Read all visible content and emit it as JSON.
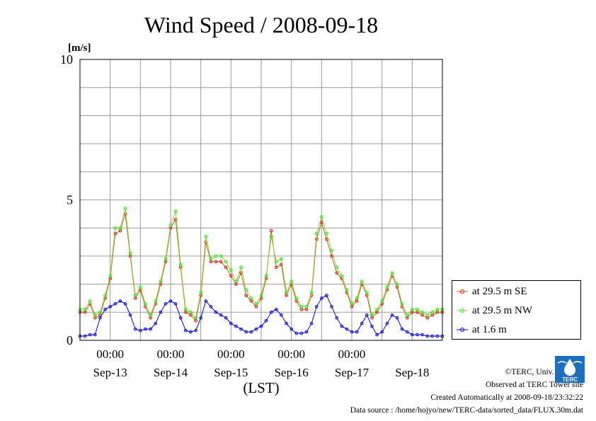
{
  "chart_data": {
    "type": "line",
    "title": "Wind Speed / 2008-09-18",
    "ylabel": "[m/s]",
    "xlabel": "(LST)",
    "ylim": [
      0,
      10
    ],
    "y_ticks": [
      "0",
      "5",
      "10"
    ],
    "x_range_hours": [
      0,
      144
    ],
    "x_axis_start": "2008-09-12 12:00 LST",
    "x_time_ticks": [
      "00:00",
      "00:00",
      "00:00",
      "00:00",
      "00:00"
    ],
    "x_date_labels": [
      "Sep-13",
      "Sep-14",
      "Sep-15",
      "Sep-16",
      "Sep-17",
      "Sep-18"
    ],
    "grid": true,
    "legend_position": "bottom-right outside plot",
    "series": [
      {
        "name": "at 29.5 m SE",
        "color": "#ff0000",
        "line_color": "#b5651d",
        "marker": "circle",
        "x_hours": [
          0,
          2,
          4,
          6,
          8,
          10,
          12,
          14,
          16,
          18,
          20,
          22,
          24,
          26,
          28,
          30,
          32,
          34,
          36,
          38,
          40,
          42,
          44,
          46,
          48,
          50,
          52,
          54,
          56,
          58,
          60,
          62,
          64,
          66,
          68,
          70,
          72,
          74,
          76,
          78,
          80,
          82,
          84,
          86,
          88,
          90,
          92,
          94,
          96,
          98,
          100,
          102,
          104,
          106,
          108,
          110,
          112,
          114,
          116,
          118,
          120,
          122,
          124,
          126,
          128,
          130,
          132,
          134,
          136,
          138,
          140,
          142,
          144
        ],
        "values": [
          1.0,
          1.0,
          1.3,
          0.8,
          0.9,
          1.5,
          2.2,
          3.8,
          3.9,
          4.5,
          3.0,
          1.5,
          1.8,
          1.2,
          0.8,
          1.3,
          2.0,
          2.8,
          4.0,
          4.3,
          2.6,
          1.0,
          0.9,
          0.7,
          1.6,
          3.5,
          2.8,
          2.8,
          2.8,
          2.6,
          2.3,
          2.0,
          2.4,
          1.6,
          1.4,
          1.2,
          1.5,
          2.2,
          3.9,
          2.6,
          2.7,
          1.6,
          2.0,
          1.4,
          1.1,
          1.1,
          1.6,
          3.6,
          4.2,
          3.6,
          3.0,
          2.4,
          2.2,
          1.7,
          1.2,
          1.4,
          2.0,
          1.6,
          0.8,
          1.0,
          1.3,
          1.8,
          2.3,
          1.9,
          1.2,
          0.8,
          1.0,
          1.0,
          0.9,
          0.8,
          0.9,
          1.0,
          1.0
        ]
      },
      {
        "name": "at 29.5 m NW",
        "color": "#00ff00",
        "line_color": "#9acd32",
        "marker": "circle",
        "x_hours": [
          0,
          2,
          4,
          6,
          8,
          10,
          12,
          14,
          16,
          18,
          20,
          22,
          24,
          26,
          28,
          30,
          32,
          34,
          36,
          38,
          40,
          42,
          44,
          46,
          48,
          50,
          52,
          54,
          56,
          58,
          60,
          62,
          64,
          66,
          68,
          70,
          72,
          74,
          76,
          78,
          80,
          82,
          84,
          86,
          88,
          90,
          92,
          94,
          96,
          98,
          100,
          102,
          104,
          106,
          108,
          110,
          112,
          114,
          116,
          118,
          120,
          122,
          124,
          126,
          128,
          130,
          132,
          134,
          136,
          138,
          140,
          142,
          144
        ],
        "values": [
          1.1,
          1.1,
          1.4,
          0.9,
          1.0,
          1.6,
          2.3,
          4.0,
          4.0,
          4.7,
          3.1,
          1.6,
          1.9,
          1.3,
          0.9,
          1.4,
          2.1,
          2.9,
          4.1,
          4.6,
          2.7,
          1.1,
          1.0,
          0.8,
          1.7,
          3.7,
          2.9,
          3.0,
          3.0,
          2.8,
          2.5,
          2.1,
          2.6,
          1.8,
          1.5,
          1.3,
          1.6,
          2.3,
          3.7,
          2.8,
          2.9,
          1.7,
          2.1,
          1.5,
          1.2,
          1.2,
          1.7,
          3.8,
          4.4,
          3.8,
          3.2,
          2.6,
          2.3,
          1.8,
          1.3,
          1.5,
          2.1,
          1.7,
          0.9,
          1.1,
          1.4,
          1.9,
          2.4,
          2.0,
          1.3,
          0.9,
          1.1,
          1.1,
          1.0,
          0.9,
          1.0,
          1.1,
          1.1
        ]
      },
      {
        "name": "at 1.6 m",
        "color": "#0000ff",
        "line_color": "#0000ff",
        "marker": "circle",
        "x_hours": [
          0,
          2,
          4,
          6,
          8,
          10,
          12,
          14,
          16,
          18,
          20,
          22,
          24,
          26,
          28,
          30,
          32,
          34,
          36,
          38,
          40,
          42,
          44,
          46,
          48,
          50,
          52,
          54,
          56,
          58,
          60,
          62,
          64,
          66,
          68,
          70,
          72,
          74,
          76,
          78,
          80,
          82,
          84,
          86,
          88,
          90,
          92,
          94,
          96,
          98,
          100,
          102,
          104,
          106,
          108,
          110,
          112,
          114,
          116,
          118,
          120,
          122,
          124,
          126,
          128,
          130,
          132,
          134,
          136,
          138,
          140,
          142,
          144
        ],
        "values": [
          0.15,
          0.15,
          0.2,
          0.2,
          0.8,
          1.1,
          1.2,
          1.3,
          1.4,
          1.3,
          0.9,
          0.4,
          0.35,
          0.4,
          0.4,
          0.6,
          1.0,
          1.3,
          1.4,
          1.3,
          0.8,
          0.35,
          0.3,
          0.35,
          0.8,
          1.4,
          1.2,
          1.0,
          0.9,
          0.8,
          0.6,
          0.5,
          0.4,
          0.3,
          0.3,
          0.4,
          0.5,
          0.7,
          1.0,
          1.1,
          0.9,
          0.6,
          0.4,
          0.25,
          0.25,
          0.3,
          0.6,
          1.2,
          1.5,
          1.6,
          1.2,
          0.8,
          0.5,
          0.4,
          0.3,
          0.3,
          0.6,
          0.9,
          0.5,
          0.2,
          0.3,
          0.6,
          0.9,
          0.8,
          0.4,
          0.3,
          0.2,
          0.2,
          0.2,
          0.15,
          0.15,
          0.15,
          0.15
        ]
      }
    ]
  },
  "footer": {
    "copyright": "©TERC, Univ. Tsukuba",
    "observed": "Observed at TERC Tower site",
    "created": "Created Automatically at 2008-09-18/23:32:22",
    "source": "Data source : /home/hojyo/new/TERC-data/sorted_data/FLUX.30m.dat"
  },
  "logo": {
    "text": "TERC",
    "color": "#1a6fbf"
  }
}
